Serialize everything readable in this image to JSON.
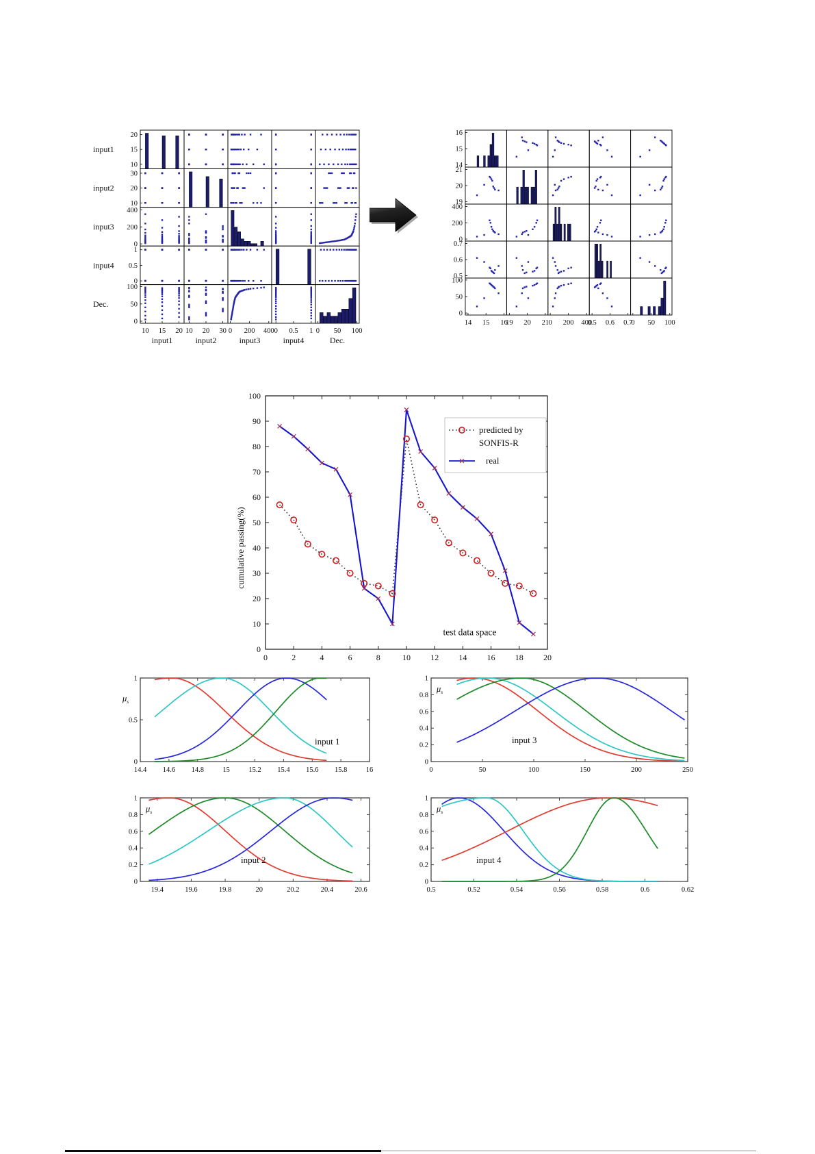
{
  "figure": {
    "description_labels": {
      "matrix_left_rows": [
        "input1",
        "input2",
        "input3",
        "input4",
        "Dec."
      ],
      "matrix_left_cols": [
        "input1",
        "input2",
        "input3",
        "input4",
        "Dec."
      ]
    },
    "colors": {
      "point": "#2424a8",
      "hist": "#1c1c6e",
      "hist_edge": "#000000",
      "real_line": "#1515cc",
      "real_marker": "#a03055",
      "pred_line": "#303030",
      "pred_marker": "#cf1d1d",
      "arrow_dark": "#0a0a0a",
      "arrow_light": "#8a8a8a",
      "arrow_shadow": "#a8a8a8",
      "mf": {
        "red": "#e23a2e",
        "cyan": "#2ec6c6",
        "blue": "#2626dd",
        "green": "#1d8a28"
      }
    }
  },
  "chart_data": [
    {
      "id": "matrix_before",
      "type": "scatter",
      "subtype": "scatter-matrix",
      "labels_visible": true,
      "variables": [
        {
          "name": "input1",
          "range": [
            8.5,
            21.5
          ],
          "ticks": [
            10,
            15,
            20
          ]
        },
        {
          "name": "input2",
          "range": [
            7,
            33
          ],
          "ticks": [
            10,
            20,
            30
          ]
        },
        {
          "name": "input3",
          "range": [
            -25,
            430
          ],
          "ticks": [
            0,
            200,
            400
          ]
        },
        {
          "name": "input4",
          "range": [
            -0.12,
            1.12
          ],
          "ticks": [
            0,
            0.5,
            1
          ]
        },
        {
          "name": "Dec.",
          "range": [
            -6,
            106
          ],
          "ticks": [
            0,
            50,
            100
          ]
        }
      ],
      "samples": [
        [
          10,
          10,
          8,
          0,
          5
        ],
        [
          15,
          10,
          10,
          1,
          8
        ],
        [
          20,
          10,
          12,
          0,
          12
        ],
        [
          10,
          20,
          15,
          1,
          16
        ],
        [
          15,
          20,
          18,
          0,
          20
        ],
        [
          20,
          20,
          20,
          1,
          24
        ],
        [
          10,
          30,
          22,
          0,
          28
        ],
        [
          15,
          30,
          25,
          1,
          32
        ],
        [
          20,
          30,
          28,
          0,
          36
        ],
        [
          10,
          10,
          30,
          1,
          40
        ],
        [
          15,
          10,
          32,
          0,
          44
        ],
        [
          20,
          10,
          35,
          1,
          48
        ],
        [
          10,
          20,
          38,
          0,
          52
        ],
        [
          15,
          20,
          40,
          1,
          55
        ],
        [
          20,
          20,
          42,
          0,
          58
        ],
        [
          10,
          30,
          45,
          1,
          61
        ],
        [
          15,
          30,
          48,
          0,
          64
        ],
        [
          20,
          30,
          50,
          1,
          67
        ],
        [
          10,
          10,
          55,
          0,
          70
        ],
        [
          15,
          10,
          60,
          1,
          72
        ],
        [
          20,
          10,
          65,
          0,
          74
        ],
        [
          10,
          20,
          70,
          1,
          76
        ],
        [
          15,
          20,
          75,
          0,
          78
        ],
        [
          20,
          20,
          80,
          1,
          80
        ],
        [
          10,
          30,
          85,
          0,
          82
        ],
        [
          15,
          30,
          90,
          1,
          83
        ],
        [
          20,
          30,
          95,
          0,
          85
        ],
        [
          10,
          10,
          100,
          1,
          86
        ],
        [
          15,
          10,
          110,
          0,
          87
        ],
        [
          20,
          10,
          120,
          1,
          88
        ],
        [
          10,
          20,
          130,
          0,
          89
        ],
        [
          15,
          20,
          140,
          1,
          90
        ],
        [
          20,
          20,
          150,
          0,
          91
        ],
        [
          10,
          30,
          170,
          1,
          92
        ],
        [
          15,
          30,
          190,
          0,
          93
        ],
        [
          20,
          30,
          210,
          1,
          94
        ],
        [
          10,
          10,
          240,
          0,
          95
        ],
        [
          15,
          10,
          280,
          1,
          96
        ],
        [
          20,
          10,
          320,
          0,
          97
        ],
        [
          10,
          20,
          350,
          1,
          98
        ]
      ]
    },
    {
      "id": "matrix_after",
      "type": "scatter",
      "subtype": "scatter-matrix",
      "labels_visible": false,
      "variables": [
        {
          "name": "input1",
          "range": [
            13.85,
            16.15
          ],
          "ticks": [
            14,
            15,
            16
          ]
        },
        {
          "name": "input2",
          "range": [
            18.85,
            21.15
          ],
          "ticks": [
            19,
            20,
            21
          ]
        },
        {
          "name": "input3",
          "range": [
            -25,
            430
          ],
          "ticks": [
            0,
            200,
            400
          ]
        },
        {
          "name": "input4",
          "range": [
            0.485,
            0.715
          ],
          "ticks": [
            0.5,
            0.6,
            0.7
          ]
        },
        {
          "name": "Dec.",
          "range": [
            -6,
            106
          ],
          "ticks": [
            0,
            50,
            100
          ]
        }
      ],
      "samples": [
        [
          14.5,
          19.4,
          30,
          0.61,
          20
        ],
        [
          14.9,
          20.05,
          50,
          0.585,
          45
        ],
        [
          15.2,
          20.55,
          230,
          0.55,
          90
        ],
        [
          15.25,
          20.5,
          200,
          0.545,
          88
        ],
        [
          15.3,
          20.4,
          150,
          0.53,
          85
        ],
        [
          15.35,
          20.3,
          120,
          0.525,
          83
        ],
        [
          15.4,
          19.95,
          100,
          0.52,
          80
        ],
        [
          15.45,
          19.85,
          90,
          0.515,
          78
        ],
        [
          15.5,
          19.75,
          80,
          0.535,
          75
        ],
        [
          15.7,
          19.7,
          60,
          0.56,
          60
        ]
      ]
    },
    {
      "id": "prediction_chart",
      "type": "line",
      "ylabel": "cumulative passing(%)",
      "annotation": "test data space",
      "xlim": [
        0,
        20
      ],
      "ylim": [
        0,
        100
      ],
      "xticks": [
        0,
        2,
        4,
        6,
        8,
        10,
        12,
        14,
        16,
        18,
        20
      ],
      "yticks": [
        0,
        10,
        20,
        30,
        40,
        50,
        60,
        70,
        80,
        90,
        100
      ],
      "x": [
        1,
        2,
        3,
        4,
        5,
        6,
        7,
        8,
        9,
        10,
        11,
        12,
        13,
        14,
        15,
        16,
        17,
        18,
        19
      ],
      "series": [
        {
          "name": "predicted by SONFIS-R",
          "style": "dotted-circle",
          "values": [
            57,
            51,
            41.5,
            37.5,
            35,
            30,
            26,
            25,
            22,
            83,
            57,
            51,
            42,
            38,
            35,
            30,
            26,
            25,
            22
          ]
        },
        {
          "name": "real",
          "style": "solid-x",
          "values": [
            88,
            84,
            79,
            73.5,
            71,
            61,
            24,
            20,
            10,
            94.5,
            78,
            71.5,
            61.5,
            56,
            51.5,
            45.5,
            31,
            10.5,
            6
          ]
        }
      ],
      "legend": {
        "line1": "predicted by",
        "line2": "SONFIS-R",
        "line3": "real",
        "position": "top-right"
      }
    },
    {
      "id": "mf_input1",
      "type": "line",
      "subtype": "membership",
      "title": "input 1",
      "mu_label": "μ",
      "mu_sub": "s",
      "xlim": [
        14.4,
        16
      ],
      "xticks": [
        14.4,
        14.6,
        14.8,
        15,
        15.2,
        15.4,
        15.6,
        15.8,
        16
      ],
      "xtick_labels": [
        "14.4",
        "14.6",
        "14.8",
        "15",
        "15.2",
        "15.4",
        "15.6",
        "15.8",
        "16"
      ],
      "yticks": [
        0,
        0.5,
        1
      ],
      "ytick_labels": [
        "0",
        "0.5",
        "1"
      ],
      "domain": [
        14.5,
        15.7
      ],
      "mu_inside": false,
      "curves": [
        {
          "color": "red",
          "center": 14.62,
          "sigma_left": 0.6,
          "sigma_right": 0.37
        },
        {
          "color": "cyan",
          "center": 14.97,
          "sigma_left": 0.42,
          "sigma_right": 0.34
        },
        {
          "color": "blue",
          "center": 15.42,
          "sigma_left": 0.34,
          "sigma_right": 0.36
        },
        {
          "color": "green",
          "center": 15.66,
          "sigma_left": 0.31,
          "sigma_right": 0.5
        }
      ]
    },
    {
      "id": "mf_input3",
      "type": "line",
      "subtype": "membership",
      "title": "input 3",
      "mu_label": "μ",
      "mu_sub": "s",
      "xlim": [
        0,
        250
      ],
      "xticks": [
        0,
        50,
        100,
        150,
        200,
        250
      ],
      "xtick_labels": [
        "0",
        "50",
        "100",
        "150",
        "200",
        "250"
      ],
      "yticks": [
        0,
        0.2,
        0.4,
        0.6,
        0.8,
        1
      ],
      "ytick_labels": [
        "0",
        "0.2",
        "0.4",
        "0.6",
        "0.8",
        "1"
      ],
      "domain": [
        25,
        247
      ],
      "mu_inside": true,
      "curves": [
        {
          "color": "red",
          "center": 42,
          "sigma_left": 70,
          "sigma_right": 62
        },
        {
          "color": "cyan",
          "center": 55,
          "sigma_left": 75,
          "sigma_right": 65
        },
        {
          "color": "green",
          "center": 88,
          "sigma_left": 82,
          "sigma_right": 63
        },
        {
          "color": "blue",
          "center": 162,
          "sigma_left": 80,
          "sigma_right": 72
        }
      ]
    },
    {
      "id": "mf_input2",
      "type": "line",
      "subtype": "membership",
      "title": "input 2",
      "mu_label": "μ",
      "mu_sub": "s",
      "xlim": [
        19.3,
        20.65
      ],
      "xticks": [
        19.4,
        19.6,
        19.8,
        20,
        20.2,
        20.4,
        20.6
      ],
      "xtick_labels": [
        "19.4",
        "19.6",
        "19.8",
        "20",
        "20.2",
        "20.4",
        "20.6"
      ],
      "yticks": [
        0,
        0.2,
        0.4,
        0.6,
        0.8,
        1
      ],
      "ytick_labels": [
        "0",
        "0.2",
        "0.4",
        "0.6",
        "0.8",
        "1"
      ],
      "domain": [
        19.35,
        20.55
      ],
      "mu_inside": true,
      "curves": [
        {
          "color": "red",
          "center": 19.47,
          "sigma_left": 0.5,
          "sigma_right": 0.33
        },
        {
          "color": "green",
          "center": 19.8,
          "sigma_left": 0.42,
          "sigma_right": 0.35
        },
        {
          "color": "cyan",
          "center": 20.15,
          "sigma_left": 0.45,
          "sigma_right": 0.3
        },
        {
          "color": "blue",
          "center": 20.44,
          "sigma_left": 0.37,
          "sigma_right": 0.45
        }
      ]
    },
    {
      "id": "mf_input4",
      "type": "line",
      "subtype": "membership",
      "title": "input 4",
      "mu_label": "μ",
      "mu_sub": "s",
      "xlim": [
        0.5,
        0.62
      ],
      "xticks": [
        0.5,
        0.52,
        0.54,
        0.56,
        0.58,
        0.6,
        0.62
      ],
      "xtick_labels": [
        "0.5",
        "0.52",
        "0.54",
        "0.56",
        "0.58",
        "0.6",
        "0.62"
      ],
      "yticks": [
        0,
        0.2,
        0.4,
        0.6,
        0.8,
        1
      ],
      "ytick_labels": [
        "0",
        "0.2",
        "0.4",
        "0.6",
        "0.8",
        "1"
      ],
      "domain": [
        0.505,
        0.606
      ],
      "mu_inside": true,
      "curves": [
        {
          "color": "blue",
          "center": 0.513,
          "sigma_left": 0.02,
          "sigma_right": 0.021
        },
        {
          "color": "cyan",
          "center": 0.526,
          "sigma_left": 0.045,
          "sigma_right": 0.017
        },
        {
          "color": "red",
          "center": 0.583,
          "sigma_left": 0.047,
          "sigma_right": 0.052
        },
        {
          "color": "green",
          "center": 0.5855,
          "sigma_left": 0.0125,
          "sigma_right": 0.015
        }
      ]
    }
  ]
}
